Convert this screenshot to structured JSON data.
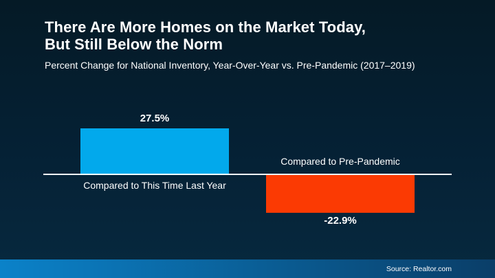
{
  "slide": {
    "title_line1": "There Are More Homes on the Market Today,",
    "title_line2": "But Still Below the Norm",
    "subtitle": "Percent Change for National Inventory, Year-Over-Year vs. Pre-Pandemic (2017–2019)",
    "source": "Source: Realtor.com"
  },
  "colors": {
    "background_top": "#051a26",
    "background_mid": "#052135",
    "background_bottom": "#07293f",
    "text": "#ffffff",
    "axis": "#ffffff",
    "bar_positive": "#02a9ec",
    "bar_negative": "#fb3a03",
    "footer_left": "#0b82c9",
    "footer_right": "#0a3e68"
  },
  "chart_data": {
    "type": "bar",
    "title": "There Are More Homes on the Market Today, But Still Below the Norm",
    "subtitle": "Percent Change for National Inventory, Year-Over-Year vs. Pre-Pandemic (2017–2019)",
    "categories": [
      "Compared to This Time Last Year",
      "Compared to Pre-Pandemic"
    ],
    "values": [
      27.5,
      -22.9
    ],
    "value_labels": [
      "27.5%",
      "-22.9%"
    ],
    "baseline": 0,
    "grid": false,
    "legend_position": "none"
  }
}
